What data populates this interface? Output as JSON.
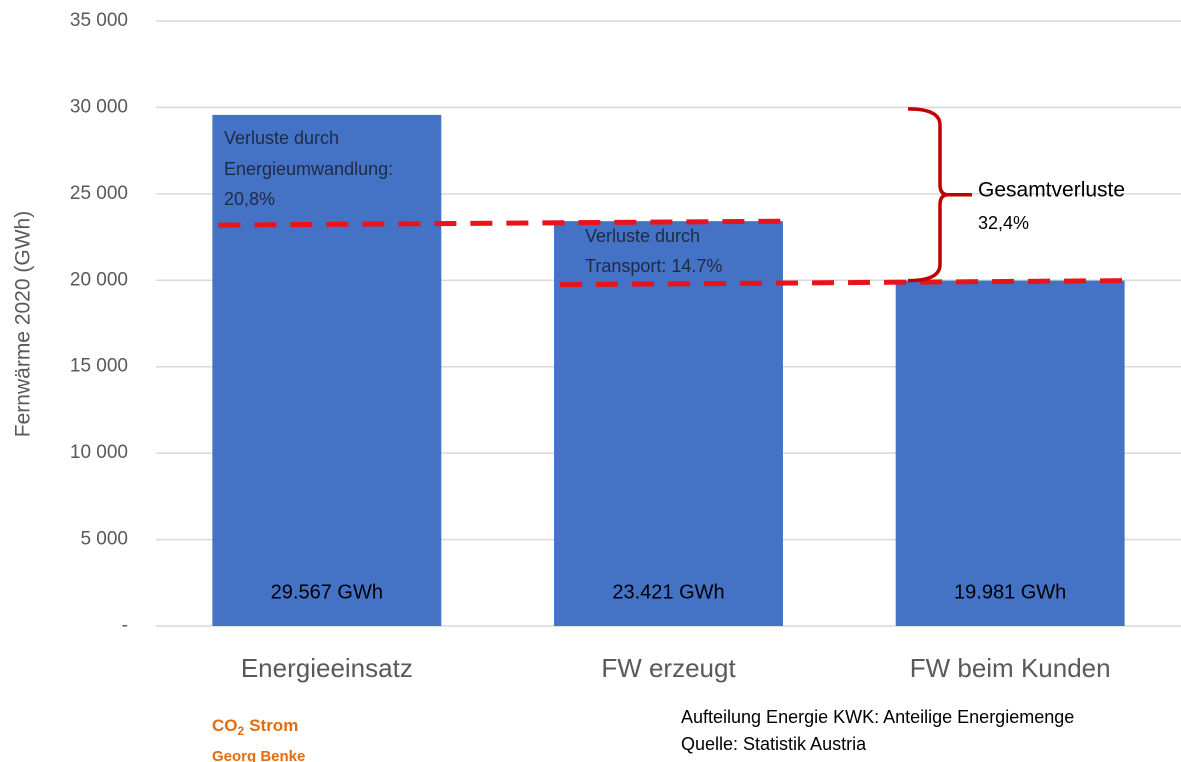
{
  "chart_data": {
    "type": "bar",
    "y_label": "Fernwärme 2020 (GWh)",
    "categories": [
      "Energieeinsatz",
      "FW erzeugt",
      "FW beim Kunden"
    ],
    "values": [
      29567,
      23421,
      19981
    ],
    "value_labels": [
      "29.567 GWh",
      "23.421 GWh",
      "19.981 GWh"
    ],
    "color": "#4472c4",
    "loss_line_color": "#e8131b",
    "ylim": [
      0,
      35000
    ],
    "yticks": [
      {
        "value": 0,
        "label": "-"
      },
      {
        "value": 5000,
        "label": "5 000"
      },
      {
        "value": 10000,
        "label": "10 000"
      },
      {
        "value": 15000,
        "label": "15 000"
      },
      {
        "value": 20000,
        "label": "20 000"
      },
      {
        "value": 25000,
        "label": "25 000"
      },
      {
        "value": 30000,
        "label": "30 000"
      },
      {
        "value": 35000,
        "label": "35 000"
      }
    ],
    "grid": true,
    "annotations": {
      "conversion": [
        "Verluste durch",
        "Energieumwandlung:",
        "20,8%"
      ],
      "transport": [
        "Verluste durch",
        "Transport: 14.7%"
      ],
      "total": [
        "Gesamtverluste",
        "32,4%"
      ]
    },
    "footer": {
      "logo": {
        "text": "CO",
        "sub": "2",
        "rest": "Strom"
      },
      "author": "Georg Benke",
      "note": "Aufteilung Energie KWK: Anteilige Energiemenge",
      "source": "Quelle: Statistik Austria"
    }
  }
}
